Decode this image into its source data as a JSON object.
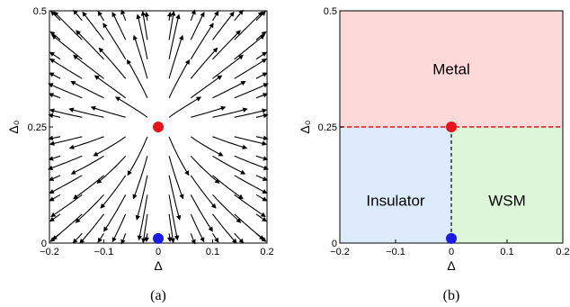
{
  "chart_data": [
    {
      "type": "streamplot",
      "xlabel": "Δ",
      "ylabel": "Δ₀",
      "xlim": [
        -0.2,
        0.2
      ],
      "ylim": [
        0,
        0.5
      ],
      "xticks": [
        "−0.2",
        "−0.1",
        "0",
        "0.1",
        "0.2"
      ],
      "yticks": [
        "0",
        "0.25",
        "0.5"
      ],
      "fixed_points": [
        {
          "x": 0,
          "y": 0.25,
          "color": "#e8141b"
        },
        {
          "x": 0,
          "y": 0.01,
          "color": "#1a1ae6"
        }
      ],
      "caption": "(a)"
    },
    {
      "type": "phase-diagram",
      "xlabel": "Δ",
      "ylabel": "Δ₀",
      "xlim": [
        -0.2,
        0.2
      ],
      "ylim": [
        0,
        0.5
      ],
      "xticks": [
        "−0.2",
        "−0.1",
        "0",
        "0.1",
        "0.2"
      ],
      "yticks": [
        "0",
        "0.25",
        "0.5"
      ],
      "regions": [
        {
          "label": "Metal",
          "x": [
            -0.2,
            0.2
          ],
          "y": [
            0.25,
            0.5
          ],
          "color": "#fdd9d9"
        },
        {
          "label": "Insulator",
          "x": [
            -0.2,
            0
          ],
          "y": [
            0,
            0.25
          ],
          "color": "#dceaf9"
        },
        {
          "label": "WSM",
          "x": [
            0,
            0.2
          ],
          "y": [
            0,
            0.25
          ],
          "color": "#ddf8d9"
        }
      ],
      "boundaries": [
        {
          "style": "dashed",
          "color": "#e8141b",
          "x": [
            -0.2,
            0.2
          ],
          "y": [
            0.25,
            0.25
          ]
        },
        {
          "style": "dashed",
          "color": "#000000",
          "x": [
            0,
            0
          ],
          "y": [
            0.01,
            0.25
          ]
        }
      ],
      "fixed_points": [
        {
          "x": 0,
          "y": 0.25,
          "color": "#e8141b"
        },
        {
          "x": 0,
          "y": 0.01,
          "color": "#1a1ae6"
        }
      ],
      "caption": "(b)"
    }
  ]
}
